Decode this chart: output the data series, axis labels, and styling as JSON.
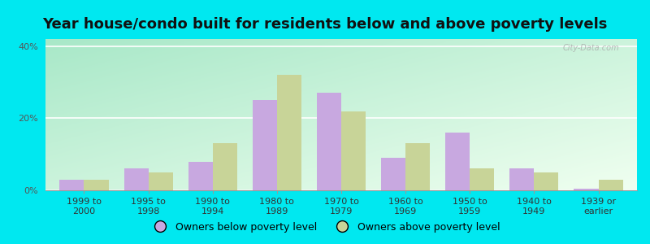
{
  "categories": [
    "1999 to\n2000",
    "1995 to\n1998",
    "1990 to\n1994",
    "1980 to\n1989",
    "1970 to\n1979",
    "1960 to\n1969",
    "1950 to\n1959",
    "1940 to\n1949",
    "1939 or\nearlier"
  ],
  "below_poverty": [
    3.0,
    6.0,
    8.0,
    25.0,
    27.0,
    9.0,
    16.0,
    6.0,
    0.5
  ],
  "above_poverty": [
    3.0,
    5.0,
    13.0,
    32.0,
    22.0,
    13.0,
    6.0,
    5.0,
    3.0
  ],
  "below_color": "#c8a8e0",
  "above_color": "#c8d498",
  "title": "Year house/condo built for residents below and above poverty levels",
  "ylim": [
    0,
    42
  ],
  "yticks": [
    0,
    20,
    40
  ],
  "ytick_labels": [
    "0%",
    "20%",
    "40%"
  ],
  "bar_width": 0.38,
  "outer_bg": "#00e8f0",
  "legend_below": "Owners below poverty level",
  "legend_above": "Owners above poverty level",
  "title_fontsize": 13,
  "tick_fontsize": 8,
  "legend_fontsize": 9,
  "gradient_top_left": "#a8e8c8",
  "gradient_bottom_right": "#f0fff0"
}
